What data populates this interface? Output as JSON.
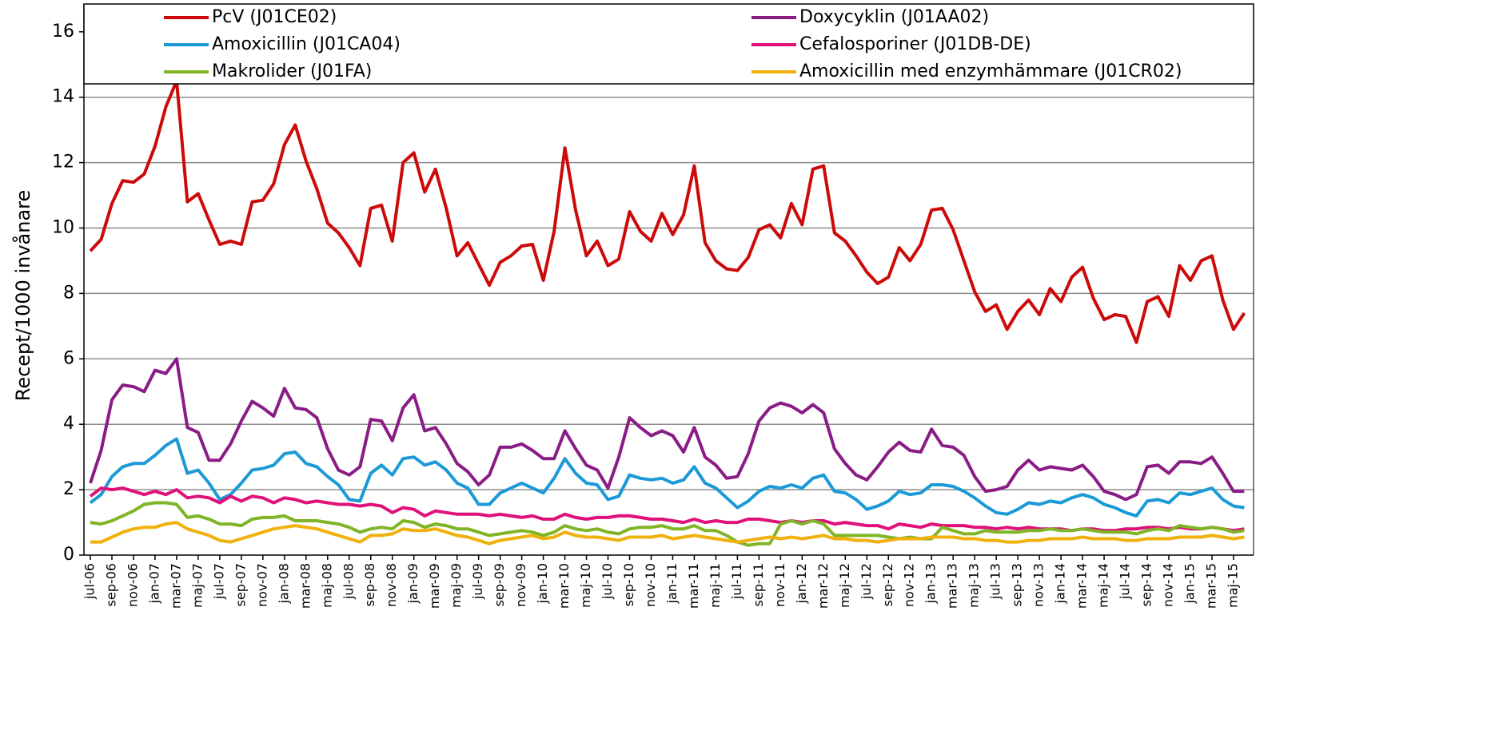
{
  "chart_data": {
    "type": "line",
    "y_label": "Recept/1000 invånare",
    "categories": [
      "jul-06",
      null,
      "sep-06",
      null,
      "nov-06",
      null,
      "jan-07",
      null,
      "mar-07",
      null,
      "maj-07",
      null,
      "jul-07",
      null,
      "sep-07",
      null,
      "nov-07",
      null,
      "jan-08",
      null,
      "mar-08",
      null,
      "maj-08",
      null,
      "jul-08",
      null,
      "sep-08",
      null,
      "nov-08",
      null,
      "jan-09",
      null,
      "mar-09",
      null,
      "maj-09",
      null,
      "jul-09",
      null,
      "sep-09",
      null,
      "nov-09",
      null,
      "jan-10",
      null,
      "mar-10",
      null,
      "maj-10",
      null,
      "jul-10",
      null,
      "sep-10",
      null,
      "nov-10",
      null,
      "jan-11",
      null,
      "mar-11",
      null,
      "maj-11",
      null,
      "jul-11",
      null,
      "sep-11",
      null,
      "nov-11",
      null,
      "jan-12",
      null,
      "mar-12",
      null,
      "maj-12",
      null,
      "jul-12",
      null,
      "sep-12",
      null,
      "nov-12",
      null,
      "jan-13",
      null,
      "mar-13",
      null,
      "maj-13",
      null,
      "jul-13",
      null,
      "sep-13",
      null,
      "nov-13",
      null,
      "jan-14",
      null,
      "mar-14",
      null,
      "maj-14",
      null,
      "jul-14",
      null,
      "sep-14",
      null,
      "nov-14",
      null,
      "jan-15",
      null,
      "mar-15",
      null,
      "maj-15",
      null
    ],
    "series": [
      {
        "name": "PcV (J01CE02)",
        "color": "#cc0a0a",
        "values": [
          9.3,
          9.65,
          10.75,
          11.45,
          11.4,
          11.65,
          12.5,
          13.7,
          14.5,
          10.8,
          11.05,
          10.25,
          9.5,
          9.6,
          9.5,
          10.8,
          10.85,
          11.35,
          12.55,
          13.15,
          12.05,
          11.2,
          10.15,
          9.85,
          9.4,
          8.85,
          10.6,
          10.7,
          9.6,
          12.0,
          12.3,
          11.1,
          11.8,
          10.6,
          9.15,
          9.55,
          8.9,
          8.25,
          8.95,
          9.15,
          9.45,
          9.5,
          8.4,
          9.9,
          12.45,
          10.55,
          9.15,
          9.6,
          8.85,
          9.05,
          10.5,
          9.9,
          9.6,
          10.45,
          9.8,
          10.4,
          11.9,
          9.55,
          9.0,
          8.75,
          8.7,
          9.1,
          9.95,
          10.1,
          9.7,
          10.75,
          10.1,
          11.8,
          11.9,
          9.85,
          9.6,
          9.15,
          8.65,
          8.3,
          8.5,
          9.4,
          9.0,
          9.5,
          10.55,
          10.6,
          9.95,
          9.0,
          8.05,
          7.45,
          7.65,
          6.9,
          7.45,
          7.8,
          7.35,
          8.15,
          7.75,
          8.5,
          8.8,
          7.85,
          7.2,
          7.35,
          7.3,
          6.5,
          7.75,
          7.9,
          7.3,
          8.85,
          8.4,
          9.0,
          9.15,
          7.8,
          6.9,
          7.4
        ]
      },
      {
        "name": "Doxycyklin (J01AA02)",
        "color": "#8a1c86",
        "values": [
          2.2,
          3.2,
          4.75,
          5.2,
          5.15,
          5.0,
          5.65,
          5.55,
          6.0,
          3.9,
          3.75,
          2.9,
          2.9,
          3.4,
          4.1,
          4.7,
          4.5,
          4.25,
          5.1,
          4.5,
          4.45,
          4.2,
          3.25,
          2.6,
          2.45,
          2.7,
          4.15,
          4.1,
          3.5,
          4.5,
          4.9,
          3.8,
          3.9,
          3.4,
          2.8,
          2.55,
          2.15,
          2.45,
          3.3,
          3.3,
          3.4,
          3.2,
          2.95,
          2.95,
          3.8,
          3.25,
          2.75,
          2.6,
          2.05,
          3.0,
          4.2,
          3.9,
          3.65,
          3.8,
          3.65,
          3.15,
          3.9,
          3.0,
          2.75,
          2.35,
          2.4,
          3.1,
          4.1,
          4.5,
          4.65,
          4.55,
          4.35,
          4.6,
          4.35,
          3.25,
          2.8,
          2.45,
          2.3,
          2.7,
          3.15,
          3.45,
          3.2,
          3.15,
          3.85,
          3.35,
          3.3,
          3.05,
          2.4,
          1.95,
          2.0,
          2.1,
          2.6,
          2.9,
          2.6,
          2.7,
          2.65,
          2.6,
          2.75,
          2.4,
          1.95,
          1.85,
          1.7,
          1.85,
          2.7,
          2.75,
          2.5,
          2.85,
          2.85,
          2.8,
          3.0,
          2.5,
          1.95,
          1.95
        ]
      },
      {
        "name": "Amoxicillin (J01CA04)",
        "color": "#1b9ad6",
        "values": [
          1.6,
          1.85,
          2.4,
          2.7,
          2.8,
          2.8,
          3.05,
          3.35,
          3.55,
          2.5,
          2.6,
          2.2,
          1.7,
          1.85,
          2.2,
          2.6,
          2.65,
          2.75,
          3.1,
          3.15,
          2.8,
          2.7,
          2.4,
          2.15,
          1.7,
          1.65,
          2.5,
          2.75,
          2.45,
          2.95,
          3.0,
          2.75,
          2.85,
          2.6,
          2.2,
          2.05,
          1.55,
          1.55,
          1.9,
          2.05,
          2.2,
          2.05,
          1.9,
          2.35,
          2.95,
          2.5,
          2.2,
          2.15,
          1.7,
          1.8,
          2.45,
          2.35,
          2.3,
          2.35,
          2.2,
          2.3,
          2.7,
          2.2,
          2.05,
          1.75,
          1.45,
          1.65,
          1.95,
          2.1,
          2.05,
          2.15,
          2.05,
          2.35,
          2.45,
          1.95,
          1.9,
          1.7,
          1.4,
          1.5,
          1.65,
          1.95,
          1.85,
          1.9,
          2.15,
          2.15,
          2.1,
          1.95,
          1.75,
          1.5,
          1.3,
          1.25,
          1.4,
          1.6,
          1.55,
          1.65,
          1.6,
          1.75,
          1.85,
          1.75,
          1.55,
          1.45,
          1.3,
          1.2,
          1.65,
          1.7,
          1.6,
          1.9,
          1.85,
          1.95,
          2.05,
          1.7,
          1.5,
          1.45
        ]
      },
      {
        "name": "Cefalosporiner (J01DB-DE)",
        "color": "#e0117a",
        "values": [
          1.8,
          2.05,
          2.0,
          2.05,
          1.95,
          1.85,
          1.95,
          1.85,
          2.0,
          1.75,
          1.8,
          1.75,
          1.6,
          1.8,
          1.65,
          1.8,
          1.75,
          1.6,
          1.75,
          1.7,
          1.6,
          1.65,
          1.6,
          1.55,
          1.55,
          1.5,
          1.55,
          1.5,
          1.3,
          1.45,
          1.4,
          1.2,
          1.35,
          1.3,
          1.25,
          1.25,
          1.25,
          1.2,
          1.25,
          1.2,
          1.15,
          1.2,
          1.1,
          1.1,
          1.25,
          1.15,
          1.1,
          1.15,
          1.15,
          1.2,
          1.2,
          1.15,
          1.1,
          1.1,
          1.05,
          1.0,
          1.1,
          1.0,
          1.05,
          1.0,
          1.0,
          1.1,
          1.1,
          1.05,
          1.0,
          1.05,
          1.0,
          1.05,
          1.05,
          0.95,
          1.0,
          0.95,
          0.9,
          0.9,
          0.8,
          0.95,
          0.9,
          0.85,
          0.95,
          0.9,
          0.9,
          0.9,
          0.85,
          0.85,
          0.8,
          0.85,
          0.8,
          0.85,
          0.8,
          0.8,
          0.8,
          0.75,
          0.8,
          0.8,
          0.75,
          0.75,
          0.8,
          0.8,
          0.85,
          0.85,
          0.8,
          0.85,
          0.8,
          0.8,
          0.85,
          0.8,
          0.75,
          0.8
        ]
      },
      {
        "name": "Makrolider (J01FA)",
        "color": "#7fb526",
        "values": [
          1.0,
          0.95,
          1.05,
          1.2,
          1.35,
          1.55,
          1.6,
          1.6,
          1.55,
          1.15,
          1.2,
          1.1,
          0.95,
          0.95,
          0.9,
          1.1,
          1.15,
          1.15,
          1.2,
          1.05,
          1.05,
          1.05,
          1.0,
          0.95,
          0.85,
          0.7,
          0.8,
          0.85,
          0.8,
          1.05,
          1.0,
          0.85,
          0.95,
          0.9,
          0.8,
          0.8,
          0.7,
          0.6,
          0.65,
          0.7,
          0.75,
          0.7,
          0.6,
          0.7,
          0.9,
          0.8,
          0.75,
          0.8,
          0.7,
          0.65,
          0.8,
          0.85,
          0.85,
          0.9,
          0.8,
          0.8,
          0.9,
          0.75,
          0.75,
          0.6,
          0.4,
          0.3,
          0.35,
          0.35,
          0.95,
          1.05,
          0.95,
          1.05,
          0.95,
          0.6,
          0.6,
          0.6,
          0.6,
          0.6,
          0.55,
          0.5,
          0.55,
          0.5,
          0.5,
          0.85,
          0.75,
          0.65,
          0.65,
          0.75,
          0.7,
          0.7,
          0.7,
          0.75,
          0.75,
          0.8,
          0.75,
          0.75,
          0.8,
          0.75,
          0.7,
          0.7,
          0.7,
          0.65,
          0.75,
          0.8,
          0.75,
          0.9,
          0.85,
          0.8,
          0.85,
          0.8,
          0.7,
          0.75
        ]
      },
      {
        "name": "Amoxicillin med enzymhämmare (J01CR02)",
        "color": "#f0b10c",
        "values": [
          0.4,
          0.4,
          0.55,
          0.7,
          0.8,
          0.85,
          0.85,
          0.95,
          1.0,
          0.8,
          0.7,
          0.6,
          0.45,
          0.4,
          0.5,
          0.6,
          0.7,
          0.8,
          0.85,
          0.9,
          0.85,
          0.8,
          0.7,
          0.6,
          0.5,
          0.4,
          0.6,
          0.6,
          0.65,
          0.8,
          0.75,
          0.75,
          0.8,
          0.7,
          0.6,
          0.55,
          0.45,
          0.35,
          0.45,
          0.5,
          0.55,
          0.6,
          0.5,
          0.55,
          0.7,
          0.6,
          0.55,
          0.55,
          0.5,
          0.45,
          0.55,
          0.55,
          0.55,
          0.6,
          0.5,
          0.55,
          0.6,
          0.55,
          0.5,
          0.45,
          0.4,
          0.45,
          0.5,
          0.55,
          0.5,
          0.55,
          0.5,
          0.55,
          0.6,
          0.5,
          0.5,
          0.45,
          0.45,
          0.4,
          0.45,
          0.5,
          0.5,
          0.5,
          0.55,
          0.55,
          0.55,
          0.5,
          0.5,
          0.45,
          0.45,
          0.4,
          0.4,
          0.45,
          0.45,
          0.5,
          0.5,
          0.5,
          0.55,
          0.5,
          0.5,
          0.5,
          0.45,
          0.45,
          0.5,
          0.5,
          0.5,
          0.55,
          0.55,
          0.55,
          0.6,
          0.55,
          0.5,
          0.55
        ]
      }
    ],
    "ylim": [
      0,
      16.85
    ],
    "yticks": [
      0,
      2,
      4,
      6,
      8,
      10,
      12,
      14,
      16
    ],
    "grid": true,
    "legend": "top"
  }
}
